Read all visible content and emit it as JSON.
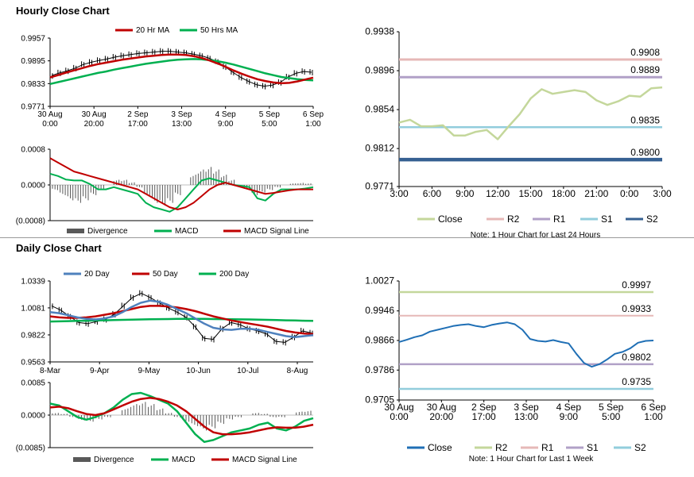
{
  "sections": {
    "hourly_title": "Hourly Close Chart",
    "daily_title": "Daily Close Chart"
  },
  "colors": {
    "ma_short": "#c00000",
    "ma_long": "#00b050",
    "ma_20day": "#4f81bd",
    "close_hourly": "#c4d79b",
    "r2": "#e6b8b7",
    "r1": "#b1a0c7",
    "s1": "#92cddc",
    "s2": "#366092",
    "close_daily": "#1f6fb5",
    "daily_r2": "#c4d79b",
    "daily_r1": "#e6b8b7",
    "daily_s1": "#b1a0c7",
    "daily_s2": "#92cddc"
  },
  "chart_data": [
    {
      "id": "hourly-price",
      "type": "line",
      "title": "Hourly Close Chart",
      "legend": [
        "20 Hr MA",
        "50 Hrs MA"
      ],
      "yticks": [
        "0.9957",
        "0.9895",
        "0.9833",
        "0.9771"
      ],
      "ylim": [
        0.9771,
        0.9957
      ],
      "xticks": [
        [
          "30 Aug",
          "0:00"
        ],
        [
          "30 Aug",
          "20:00"
        ],
        [
          "2 Sep",
          "17:00"
        ],
        [
          "3 Sep",
          "13:00"
        ],
        [
          "4 Sep",
          "9:00"
        ],
        [
          "5 Sep",
          "5:00"
        ],
        [
          "6 Sep",
          "1:00"
        ]
      ],
      "close": [
        0.9855,
        0.9862,
        0.9868,
        0.9875,
        0.9885,
        0.9891,
        0.9896,
        0.99,
        0.9905,
        0.9909,
        0.9912,
        0.9915,
        0.9917,
        0.9919,
        0.9921,
        0.9921,
        0.9919,
        0.9917,
        0.9913,
        0.9909,
        0.9902,
        0.9893,
        0.9879,
        0.9864,
        0.985,
        0.9839,
        0.983,
        0.9826,
        0.9829,
        0.9836,
        0.9851,
        0.9861,
        0.9866,
        0.9864
      ],
      "ma20": [
        0.985,
        0.9856,
        0.9863,
        0.9869,
        0.9875,
        0.9881,
        0.9886,
        0.989,
        0.9894,
        0.9898,
        0.9901,
        0.9904,
        0.9907,
        0.9909,
        0.9911,
        0.9912,
        0.9912,
        0.9911,
        0.9908,
        0.9903,
        0.9896,
        0.9888,
        0.9879,
        0.9869,
        0.986,
        0.9852,
        0.9845,
        0.984,
        0.9836,
        0.9834,
        0.9835,
        0.9839,
        0.9844,
        0.9849
      ],
      "ma50": [
        0.9832,
        0.9837,
        0.9842,
        0.9847,
        0.9852,
        0.9857,
        0.9862,
        0.9866,
        0.9871,
        0.9875,
        0.9879,
        0.9883,
        0.9887,
        0.989,
        0.9893,
        0.9896,
        0.9898,
        0.9899,
        0.99,
        0.9899,
        0.9897,
        0.9894,
        0.989,
        0.9885,
        0.9879,
        0.9873,
        0.9867,
        0.9861,
        0.9856,
        0.9851,
        0.9848,
        0.9845,
        0.9843,
        0.9842
      ]
    },
    {
      "id": "hourly-macd",
      "type": "bar-line",
      "legend": [
        "Divergence",
        "MACD",
        "MACD Signal Line"
      ],
      "yticks": [
        "0.0008",
        "0.0000",
        "(0.0008)"
      ],
      "ylim": [
        -0.0008,
        0.0008
      ],
      "divergence": [
        -0.0001,
        -0.0002,
        -0.0003,
        -0.00035,
        -0.0003,
        -0.0002,
        -0.0001,
        0.0,
        0.0001,
        0.0001,
        5e-05,
        -5e-05,
        -0.0002,
        -0.00035,
        -0.0004,
        -0.00035,
        -0.0002,
        0.0,
        0.0002,
        0.0003,
        0.00035,
        0.0003,
        0.0002,
        0.0001,
        0.0,
        -0.0001,
        -0.0002,
        -0.00015,
        -0.0001,
        -5e-05,
        0.0,
        3e-05,
        4e-05,
        3e-05
      ],
      "macd": [
        0.00025,
        0.0002,
        0.00012,
        0.0001,
        0.0001,
        2e-05,
        -0.0001,
        -0.0001,
        -5e-05,
        -0.0001,
        -0.00015,
        -0.0002,
        -0.0004,
        -0.0005,
        -0.00055,
        -0.0006,
        -0.0005,
        -0.0003,
        -0.0001,
        0.0001,
        0.00015,
        0.0001,
        5e-05,
        0.0,
        -2e-05,
        -5e-05,
        -0.0003,
        -0.00035,
        -0.0002,
        -0.0001,
        -0.0001,
        -0.0001,
        -8e-05,
        -5e-05
      ],
      "signal": [
        0.0006,
        0.0005,
        0.0004,
        0.0003,
        0.00025,
        0.0002,
        0.00015,
        0.0001,
        5e-05,
        0.0,
        -5e-05,
        -0.0001,
        -0.0002,
        -0.0003,
        -0.0004,
        -0.0005,
        -0.00055,
        -0.0005,
        -0.0004,
        -0.00025,
        -0.0001,
        0.0,
        5e-05,
        0.0,
        -5e-05,
        -0.0001,
        -0.00015,
        -0.0002,
        -0.00018,
        -0.00015,
        -0.00012,
        -0.0001,
        -0.0001,
        -0.0001
      ]
    },
    {
      "id": "hourly-levels",
      "type": "line",
      "legend": [
        "Close",
        "R2",
        "R1",
        "S1",
        "S2"
      ],
      "yticks": [
        "0.9938",
        "0.9896",
        "0.9854",
        "0.9812",
        "0.9771"
      ],
      "ylim": [
        0.9771,
        0.9938
      ],
      "xticks": [
        "3:00",
        "6:00",
        "9:00",
        "12:00",
        "15:00",
        "18:00",
        "21:00",
        "0:00",
        "3:00"
      ],
      "close": [
        0.984,
        0.9843,
        0.9836,
        0.9836,
        0.9837,
        0.9826,
        0.9826,
        0.983,
        0.9832,
        0.9822,
        0.9836,
        0.9849,
        0.9866,
        0.9876,
        0.9871,
        0.9873,
        0.9875,
        0.9873,
        0.9864,
        0.9859,
        0.9863,
        0.9869,
        0.9868,
        0.9877,
        0.9878
      ],
      "levels": [
        {
          "name": "R2",
          "value": 0.9908,
          "label": "0.9908"
        },
        {
          "name": "R1",
          "value": 0.9889,
          "label": "0.9889"
        },
        {
          "name": "S1",
          "value": 0.9835,
          "label": "0.9835"
        },
        {
          "name": "S2",
          "value": 0.98,
          "label": "0.9800"
        }
      ],
      "note": "Note: 1 Hour Chart for Last 24 Hours"
    },
    {
      "id": "daily-price",
      "type": "line",
      "title": "Daily Close Chart",
      "legend": [
        "20 Day",
        "50 Day",
        "200 Day"
      ],
      "yticks": [
        "1.0339",
        "1.0081",
        "0.9822",
        "0.9563"
      ],
      "ylim": [
        0.9563,
        1.0339
      ],
      "xticks": [
        "8-Mar",
        "9-Apr",
        "9-May",
        "10-Jun",
        "10-Jul",
        "8-Aug"
      ],
      "close": [
        1.01,
        1.006,
        1.0,
        0.994,
        0.993,
        0.995,
        0.997,
        1.002,
        1.01,
        1.018,
        1.022,
        1.018,
        1.013,
        1.008,
        1.004,
        0.999,
        0.99,
        0.979,
        0.978,
        0.988,
        0.994,
        0.992,
        0.988,
        0.986,
        0.983,
        0.976,
        0.975,
        0.98,
        0.986,
        0.984
      ],
      "ma20": [
        1.004,
        1.003,
        1.001,
        0.999,
        0.9975,
        0.997,
        0.998,
        1.0,
        1.004,
        1.009,
        1.013,
        1.015,
        1.014,
        1.011,
        1.007,
        1.003,
        0.998,
        0.993,
        0.989,
        0.9875,
        0.987,
        0.988,
        0.988,
        0.987,
        0.985,
        0.983,
        0.981,
        0.98,
        0.981,
        0.982
      ],
      "ma50": [
        1.0,
        0.999,
        0.9985,
        0.9985,
        0.999,
        1.0,
        1.0015,
        1.003,
        1.005,
        1.007,
        1.009,
        1.01,
        1.01,
        1.0095,
        1.0085,
        1.007,
        1.005,
        1.0025,
        1.0,
        0.998,
        0.996,
        0.9945,
        0.993,
        0.9915,
        0.99,
        0.988,
        0.986,
        0.9845,
        0.9835,
        0.983
      ],
      "ma200": [
        0.995,
        0.9952,
        0.9954,
        0.9956,
        0.9958,
        0.996,
        0.9962,
        0.9964,
        0.9966,
        0.9968,
        0.997,
        0.9972,
        0.9973,
        0.9974,
        0.9975,
        0.9975,
        0.9975,
        0.9975,
        0.9974,
        0.9973,
        0.9972,
        0.9971,
        0.997,
        0.9968,
        0.9966,
        0.9964,
        0.9962,
        0.996,
        0.9958,
        0.9956
      ]
    },
    {
      "id": "daily-macd",
      "type": "bar-line",
      "legend": [
        "Divergence",
        "MACD",
        "MACD Signal Line"
      ],
      "yticks": [
        "0.0085",
        "0.0000",
        "(0.0085)"
      ],
      "ylim": [
        -0.0085,
        0.0085
      ],
      "divergence": [
        0.0005,
        0.0003,
        -0.0005,
        -0.0012,
        -0.0015,
        -0.001,
        -0.0005,
        0.0,
        0.0015,
        0.0025,
        0.003,
        0.0025,
        0.0015,
        0.0005,
        -0.0005,
        -0.0015,
        -0.0025,
        -0.0035,
        -0.003,
        -0.002,
        -0.001,
        -0.0005,
        0.0,
        0.0005,
        0.0003,
        -0.0005,
        -0.0005,
        0.0,
        0.0008,
        0.001
      ],
      "macd": [
        0.003,
        0.0025,
        0.001,
        -0.0005,
        -0.0012,
        -0.0005,
        0.0005,
        0.002,
        0.004,
        0.0055,
        0.0058,
        0.005,
        0.004,
        0.003,
        0.001,
        -0.002,
        -0.005,
        -0.007,
        -0.0065,
        -0.0055,
        -0.0045,
        -0.004,
        -0.0035,
        -0.0025,
        -0.002,
        -0.0035,
        -0.004,
        -0.003,
        -0.0015,
        -0.0008
      ],
      "signal": [
        0.002,
        0.0022,
        0.0018,
        0.001,
        0.0003,
        0.0,
        0.0005,
        0.0015,
        0.0025,
        0.0035,
        0.0042,
        0.0045,
        0.0042,
        0.0035,
        0.0025,
        0.001,
        -0.001,
        -0.003,
        -0.0045,
        -0.005,
        -0.005,
        -0.0048,
        -0.0045,
        -0.004,
        -0.0035,
        -0.0032,
        -0.0033,
        -0.0033,
        -0.003,
        -0.0025
      ]
    },
    {
      "id": "daily-levels",
      "type": "line",
      "legend": [
        "Close",
        "R2",
        "R1",
        "S1",
        "S2"
      ],
      "yticks": [
        "1.0027",
        "0.9946",
        "0.9866",
        "0.9786",
        "0.9705"
      ],
      "ylim": [
        0.9705,
        1.0027
      ],
      "xticks": [
        [
          "30 Aug",
          "0:00"
        ],
        [
          "30 Aug",
          "20:00"
        ],
        [
          "2 Sep",
          "17:00"
        ],
        [
          "3 Sep",
          "13:00"
        ],
        [
          "4 Sep",
          "9:00"
        ],
        [
          "5 Sep",
          "5:00"
        ],
        [
          "6 Sep",
          "1:00"
        ]
      ],
      "close": [
        0.9862,
        0.9868,
        0.9875,
        0.988,
        0.989,
        0.9895,
        0.99,
        0.9905,
        0.9908,
        0.991,
        0.9905,
        0.9902,
        0.9908,
        0.9912,
        0.9915,
        0.991,
        0.9895,
        0.987,
        0.9865,
        0.9863,
        0.9867,
        0.9862,
        0.9858,
        0.983,
        0.9805,
        0.9795,
        0.9802,
        0.9815,
        0.983,
        0.9835,
        0.9845,
        0.986,
        0.9865,
        0.9866
      ],
      "levels": [
        {
          "name": "R2",
          "value": 0.9997,
          "label": "0.9997"
        },
        {
          "name": "R1",
          "value": 0.9933,
          "label": "0.9933"
        },
        {
          "name": "S1",
          "value": 0.9802,
          "label": "0.9802"
        },
        {
          "name": "S2",
          "value": 0.9735,
          "label": "0.9735"
        }
      ],
      "note": "Note: 1 Hour Chart for Last 1 Week"
    }
  ]
}
